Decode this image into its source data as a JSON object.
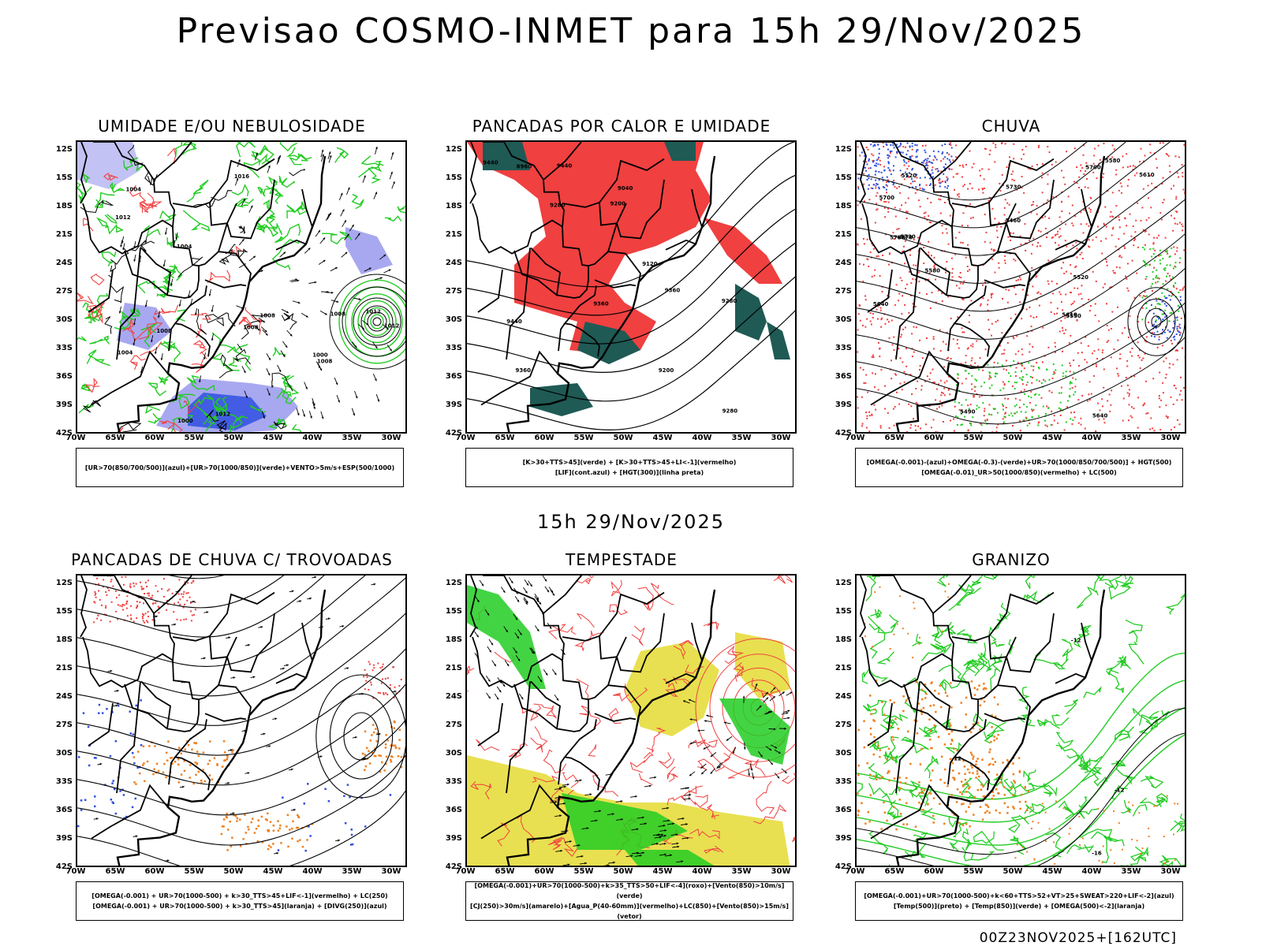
{
  "title": "Previsao COSMO-INMET  para 15h 29/Nov/2025",
  "subtitle": "15h 29/Nov/2025",
  "footer": "00Z23NOV2025+[162UTC]",
  "lat_labels": [
    "12S",
    "15S",
    "18S",
    "21S",
    "24S",
    "27S",
    "30S",
    "33S",
    "36S",
    "39S",
    "42S"
  ],
  "lon_labels": [
    "70W",
    "65W",
    "60W",
    "55W",
    "50W",
    "45W",
    "40W",
    "35W",
    "30W"
  ],
  "colors": {
    "red": "#f04040",
    "green": "#22cc22",
    "blue": "#3050e0",
    "lightblue": "#a8a8f0",
    "darkteal": "#1f5a55",
    "yellow": "#e8e050",
    "orange": "#f08020",
    "black": "#000000"
  },
  "panels": [
    {
      "title": "UMIDADE E/OU NEBULOSIDADE",
      "legend": [
        "[UR>70(850/700/500)](azul)+[UR>70(1000/850)](verde)+VENTO>5m/s+ESP(500/1000)"
      ],
      "contour_labels": [
        "1004",
        "1008",
        "1008",
        "1000",
        "1012",
        "1012",
        "1008",
        "1004",
        "1000",
        "1016",
        "1012",
        "1004",
        "1008",
        "1012",
        "1008"
      ]
    },
    {
      "title": "PANCADAS POR CALOR E UMIDADE",
      "legend": [
        "[K>30+TTS>45](verde) + [K>30+TTS>45+LI<-1](vermelho)",
        "[LIF](cont.azul) + [HGT(300)](linha preta)"
      ],
      "contour_labels": [
        "9440",
        "9360",
        "9440",
        "9440",
        "9360",
        "9280",
        "9360",
        "9280",
        "9200",
        "9280",
        "9200",
        "9120",
        "9040",
        "8960"
      ]
    },
    {
      "title": "CHUVA",
      "legend": [
        "[OMEGA(-0.001)-(azul)+OMEGA(-0.3)-(verde)+UR>70(1000/850/700/500)] + HGT(500)",
        "[OMEGA(-0.01)_UR>50(1000/850)(vermelho) + LC(500)"
      ],
      "contour_labels": [
        "5730",
        "5700",
        "5730",
        "5700",
        "5670",
        "5640",
        "5610",
        "5580",
        "5550",
        "5520",
        "5490",
        "5460",
        "5700",
        "5640",
        "5610",
        "5580",
        "5520"
      ]
    },
    {
      "title": "PANCADAS DE CHUVA C/ TROVOADAS",
      "legend": [
        "[OMEGA(-0.001) + UR>70(1000-500) + k>30_TTS>45+LIF<-1](vermelho) + LC(250)",
        "[OMEGA(-0.001) + UR>70(1000-500) + k>30_TTS>45](laranja) + [DIVG(250)](azul)"
      ],
      "contour_labels": []
    },
    {
      "title": "TEMPESTADE",
      "legend": [
        "[OMEGA(-0.001)+UR>70(1000-500)+k>35_TTS>50+LIF<-4](roxo)+[Vento(850)>10m/s](verde)",
        "[CJ(250)>30m/s](amarelo)+[Agua_P(40-60mm)](vermelho)+LC(850)+[Vento(850)>15m/s](vetor)"
      ],
      "contour_labels": []
    },
    {
      "title": "GRANIZO",
      "legend": [
        "[OMEGA(-0.001)+UR>70(1000-500)+k<60+TTS>52+VT>25+SWEAT>220+LIF<-2](azul)",
        "[Temp(500)](preto) + [Temp(850)](verde) + [OMEGA(500)<-2](laranja)"
      ],
      "contour_labels": [
        "-12",
        "-12",
        "-16",
        "-12"
      ]
    }
  ]
}
